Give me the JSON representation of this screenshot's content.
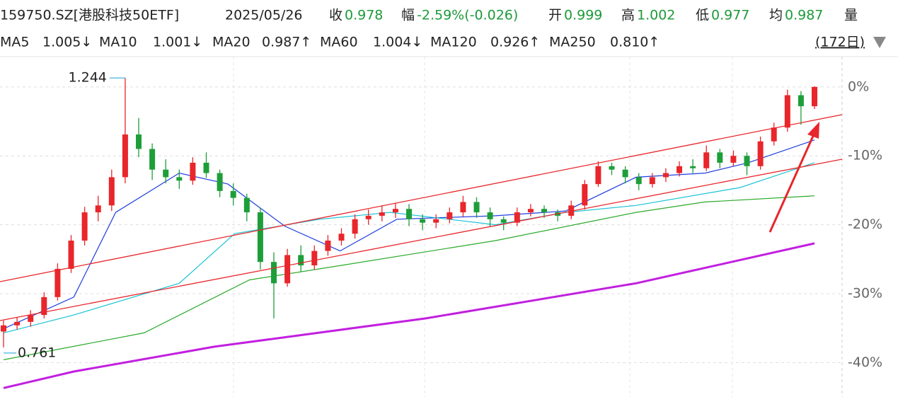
{
  "header": {
    "code": "159750.SZ[港股科技50ETF]",
    "date": "2025/05/26",
    "fields": [
      {
        "label": "收",
        "value": "0.978"
      },
      {
        "label": "幅",
        "value": "-2.59%(-0.026)"
      },
      {
        "label": "开",
        "value": "0.999"
      },
      {
        "label": "高",
        "value": "1.002"
      },
      {
        "label": "低",
        "value": "0.977"
      },
      {
        "label": "均",
        "value": "0.987"
      }
    ],
    "volume_label": "量"
  },
  "ma_legend": [
    {
      "name": "MA5",
      "value": "1.005↓",
      "color": "#e0162b"
    },
    {
      "name": "MA10",
      "value": "1.001↓",
      "color": "#4a86c5"
    },
    {
      "name": "MA20",
      "value": "0.987↑",
      "color": "#1f3fe0"
    },
    {
      "name": "MA60",
      "value": "1.004↓",
      "color": "#19c3d6"
    },
    {
      "name": "MA120",
      "value": "0.926↑",
      "color": "#2aaa2a"
    },
    {
      "name": "MA250",
      "value": "0.810↑",
      "color": "#c21fe0"
    }
  ],
  "period": "(172日)",
  "chart_data": {
    "type": "candlestick",
    "up_color": "#e8262b",
    "down_color": "#1e9e3a",
    "ylim": [
      -45,
      4.4
    ],
    "yticks": [
      {
        "value": 0,
        "label": "0%"
      },
      {
        "value": -10,
        "label": "-10%"
      },
      {
        "value": -20,
        "label": "-20%"
      },
      {
        "value": -30,
        "label": "-30%"
      },
      {
        "value": -40,
        "label": "-40%"
      }
    ],
    "grid": true,
    "high_label": "1.244",
    "low_label": "0.761",
    "ohlc": [
      [
        -35.5,
        -33.9,
        -37.8,
        -34.6
      ],
      [
        -34.6,
        -33.5,
        -35.2,
        -34.1
      ],
      [
        -34.1,
        -32.4,
        -34.8,
        -33.1
      ],
      [
        -33.1,
        -29.8,
        -33.6,
        -30.5
      ],
      [
        -30.5,
        -25.6,
        -31.0,
        -26.4
      ],
      [
        -26.4,
        -21.5,
        -27.0,
        -22.3
      ],
      [
        -22.3,
        -17.4,
        -23.0,
        -18.2
      ],
      [
        -18.2,
        -15.8,
        -19.5,
        -17.2
      ],
      [
        -17.2,
        -12.0,
        -18.0,
        -13.1
      ],
      [
        -13.1,
        1.3,
        -14.0,
        -6.9
      ],
      [
        -6.9,
        -4.5,
        -10.2,
        -9.0
      ],
      [
        -9.0,
        -8.2,
        -13.5,
        -12.0
      ],
      [
        -12.0,
        -10.5,
        -14.0,
        -13.1
      ],
      [
        -13.1,
        -12.0,
        -14.8,
        -13.6
      ],
      [
        -13.6,
        -10.2,
        -14.2,
        -11.0
      ],
      [
        -11.0,
        -9.5,
        -13.2,
        -12.5
      ],
      [
        -12.5,
        -12.0,
        -16.0,
        -15.1
      ],
      [
        -15.1,
        -14.0,
        -17.2,
        -16.1
      ],
      [
        -16.1,
        -15.5,
        -19.5,
        -18.2
      ],
      [
        -18.2,
        -17.5,
        -26.5,
        -25.4
      ],
      [
        -25.4,
        -24.0,
        -33.6,
        -28.5
      ],
      [
        -28.5,
        -23.5,
        -29.0,
        -24.4
      ],
      [
        -24.4,
        -23.0,
        -26.8,
        -25.9
      ],
      [
        -25.9,
        -23.0,
        -26.5,
        -23.8
      ],
      [
        -23.8,
        -21.5,
        -24.5,
        -22.3
      ],
      [
        -22.3,
        -20.5,
        -23.0,
        -21.3
      ],
      [
        -21.3,
        -18.5,
        -22.0,
        -19.2
      ],
      [
        -19.2,
        -17.8,
        -20.0,
        -18.7
      ],
      [
        -18.7,
        -17.2,
        -19.5,
        -18.2
      ],
      [
        -18.2,
        -16.8,
        -19.0,
        -17.7
      ],
      [
        -17.7,
        -17.0,
        -20.2,
        -19.2
      ],
      [
        -19.2,
        -18.5,
        -20.8,
        -19.7
      ],
      [
        -19.7,
        -18.5,
        -20.5,
        -19.2
      ],
      [
        -19.2,
        -17.5,
        -19.8,
        -18.2
      ],
      [
        -18.2,
        -15.8,
        -18.8,
        -16.7
      ],
      [
        -16.7,
        -16.0,
        -19.0,
        -18.2
      ],
      [
        -18.2,
        -17.5,
        -20.2,
        -19.2
      ],
      [
        -19.2,
        -18.8,
        -20.8,
        -19.7
      ],
      [
        -19.7,
        -17.5,
        -20.2,
        -18.2
      ],
      [
        -18.2,
        -17.0,
        -18.8,
        -17.7
      ],
      [
        -17.7,
        -17.2,
        -19.0,
        -18.2
      ],
      [
        -18.2,
        -17.8,
        -19.5,
        -18.7
      ],
      [
        -18.7,
        -16.5,
        -19.2,
        -17.2
      ],
      [
        -17.2,
        -13.5,
        -17.8,
        -14.1
      ],
      [
        -14.1,
        -10.8,
        -14.5,
        -11.5
      ],
      [
        -11.5,
        -11.0,
        -12.8,
        -12.0
      ],
      [
        -12.0,
        -11.5,
        -14.0,
        -13.1
      ],
      [
        -13.1,
        -12.5,
        -15.0,
        -14.1
      ],
      [
        -14.1,
        -12.5,
        -14.6,
        -13.1
      ],
      [
        -13.1,
        -11.8,
        -13.8,
        -12.5
      ],
      [
        -12.5,
        -10.8,
        -13.0,
        -11.5
      ],
      [
        -11.5,
        -10.5,
        -12.5,
        -11.8
      ],
      [
        -11.8,
        -8.5,
        -12.2,
        -9.5
      ],
      [
        -9.5,
        -9.0,
        -11.8,
        -11.0
      ],
      [
        -11.0,
        -9.2,
        -11.5,
        -10.0
      ],
      [
        -10.0,
        -9.5,
        -12.8,
        -11.5
      ],
      [
        -11.5,
        -7.2,
        -12.0,
        -7.9
      ],
      [
        -7.9,
        -5.2,
        -8.5,
        -5.9
      ],
      [
        -5.9,
        -0.4,
        -6.5,
        -1.2
      ],
      [
        -1.2,
        -0.6,
        -5.5,
        -2.8
      ],
      [
        -2.8,
        0.1,
        -3.2,
        0.0
      ]
    ],
    "lines": [
      {
        "color": "#1f3fe0",
        "x": [
          0,
          5.2,
          8.3,
          13,
          16.6,
          20.8,
          24.9,
          29.1,
          36.4,
          41.6,
          46.8,
          51.9,
          55.1,
          60
        ],
        "values": [
          -35.1,
          -30.5,
          -18.2,
          -12.5,
          -14.1,
          -20.2,
          -23.8,
          -19.2,
          -18.7,
          -18.0,
          -13.1,
          -12.5,
          -11.0,
          -7.7
        ]
      },
      {
        "color": "#19c3d6",
        "x": [
          0,
          5.2,
          13,
          17.1,
          23.4,
          28.6,
          36.4,
          41.6,
          46.8,
          54.5,
          60
        ],
        "values": [
          -35.7,
          -33.1,
          -28.5,
          -21.3,
          -19.2,
          -18.2,
          -20.0,
          -18.2,
          -17.2,
          -14.6,
          -11.0
        ]
      },
      {
        "color": "#2aaa2a",
        "x": [
          0,
          10.4,
          18.2,
          23.4,
          36.4,
          46.8,
          51.9,
          60
        ],
        "values": [
          -39.6,
          -35.7,
          -28.0,
          -26.4,
          -22.3,
          -18.2,
          -16.7,
          -15.8
        ]
      },
      {
        "color": "#c21fe0",
        "x": [
          0,
          5.2,
          15.6,
          31.2,
          46.8,
          60
        ],
        "values": [
          -43.7,
          -41.3,
          -37.7,
          -33.6,
          -28.5,
          -22.7
        ]
      }
    ]
  }
}
